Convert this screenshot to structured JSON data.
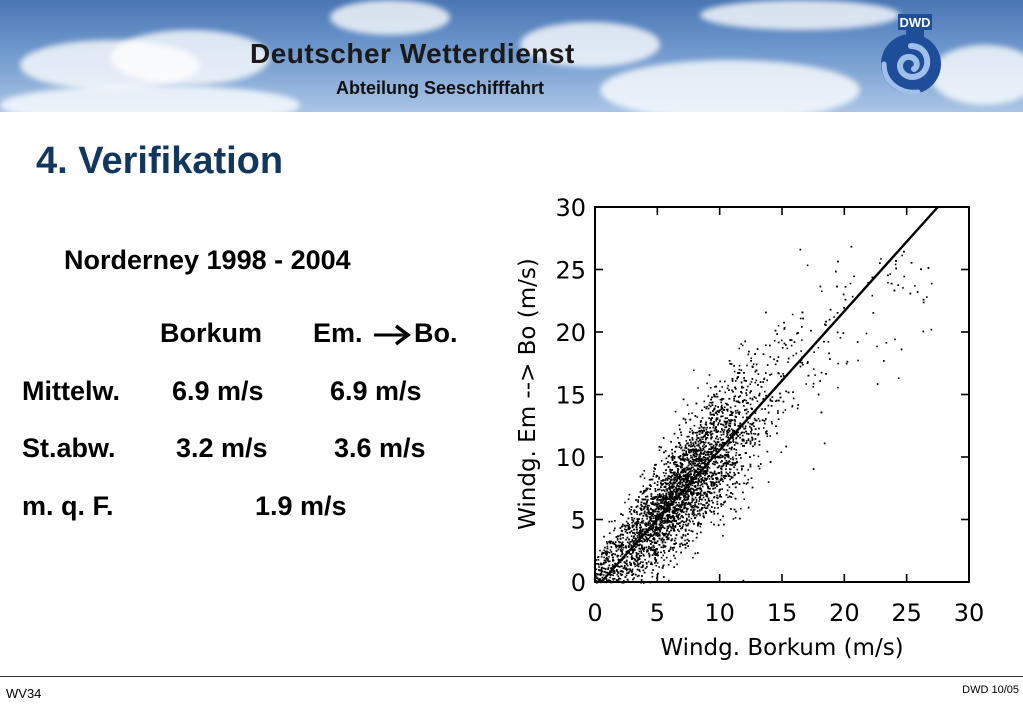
{
  "header": {
    "org_name": "Deutscher Wetterdienst",
    "department": "Abteilung Seeschifffahrt",
    "logo_text": "DWD"
  },
  "slide": {
    "title": "4. Verifikation",
    "subtitle": "Norderney 1998 - 2004"
  },
  "stats_table": {
    "columns": [
      "Borkum",
      "Em.",
      "Bo."
    ],
    "rows": [
      {
        "label": "Mittelw.",
        "borkum": "6.9 m/s",
        "em_bo": "6.9 m/s"
      },
      {
        "label": "St.abw.",
        "borkum": "3.2 m/s",
        "em_bo": "3.6 m/s"
      },
      {
        "label": "m. q. F.",
        "combined": "1.9 m/s"
      }
    ]
  },
  "chart_data": {
    "type": "scatter",
    "xlabel": "Windg. Borkum (m/s)",
    "ylabel": "Windg. Em --> Bo (m/s)",
    "xlim": [
      0,
      30
    ],
    "ylim": [
      0,
      30
    ],
    "xticks": [
      0,
      5,
      10,
      15,
      20,
      25,
      30
    ],
    "yticks": [
      0,
      5,
      10,
      15,
      20,
      25,
      30
    ],
    "point_cloud": {
      "description_of_density": "dense cloud along the fitted line",
      "approx_x_range": [
        0,
        27
      ],
      "approx_y_range": [
        0,
        27
      ],
      "mean_x": 6.9,
      "mean_y": 6.9
    },
    "regression_line": {
      "x": [
        0.5,
        27.5
      ],
      "y": [
        0.0,
        30.0
      ]
    },
    "marker_color": "#000000",
    "line_color": "#000000"
  },
  "footer": {
    "left": "WV34",
    "right": "DWD 10/05"
  }
}
